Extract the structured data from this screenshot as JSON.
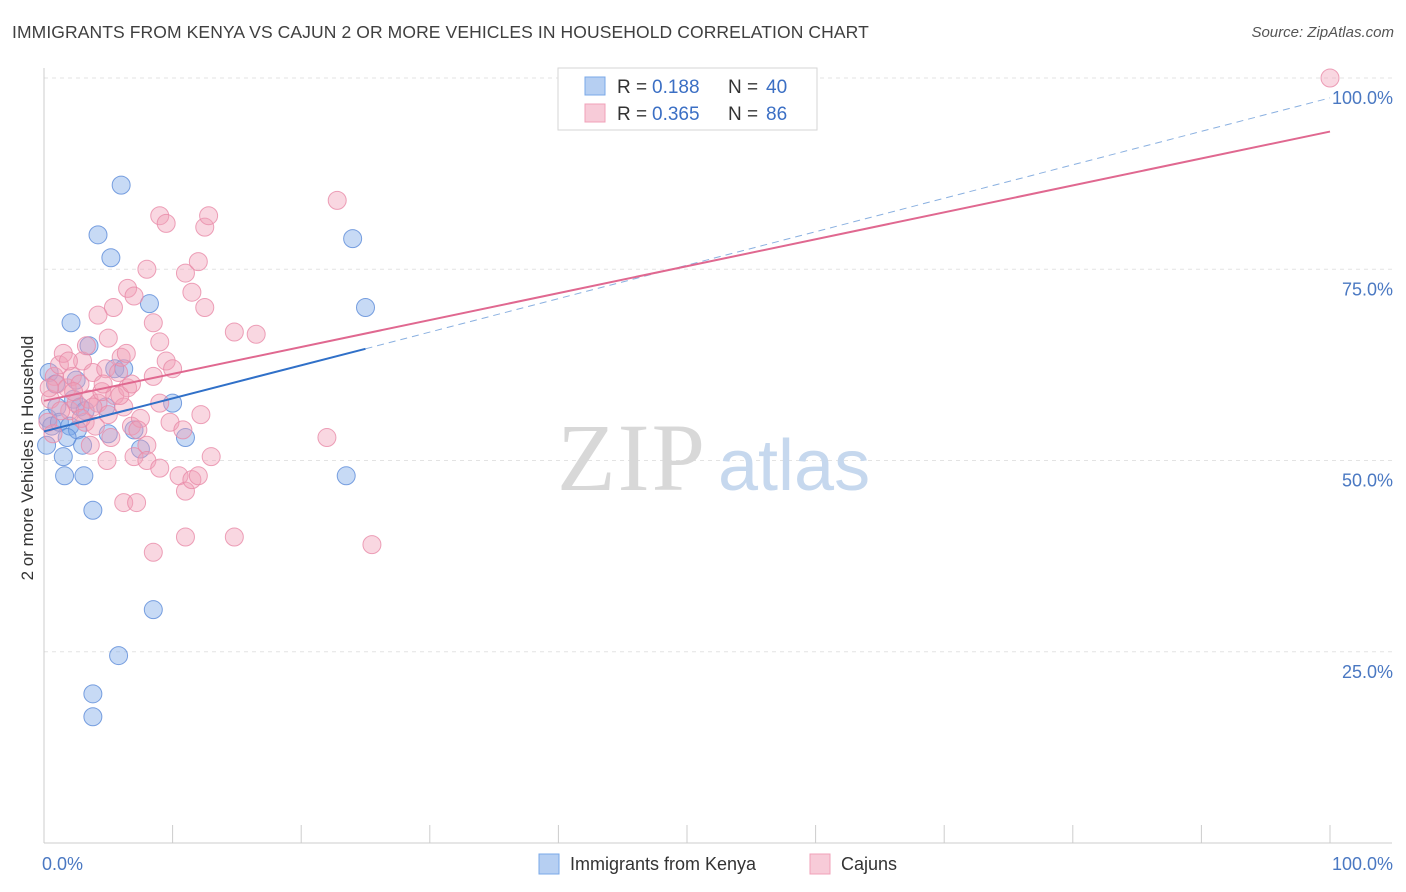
{
  "title": "IMMIGRANTS FROM KENYA VS CAJUN 2 OR MORE VEHICLES IN HOUSEHOLD CORRELATION CHART",
  "source": "Source: ZipAtlas.com",
  "watermark": {
    "zip": "ZIP",
    "atlas": "atlas"
  },
  "chart_data": {
    "type": "scatter",
    "title": "IMMIGRANTS FROM KENYA VS CAJUN 2 OR MORE VEHICLES IN HOUSEHOLD CORRELATION CHART",
    "xlabel": "",
    "ylabel": "2 or more Vehicles in Household",
    "xlim": [
      0,
      100
    ],
    "ylim": [
      0,
      100
    ],
    "x_tick_labels": [
      "0.0%",
      "100.0%"
    ],
    "y_ticks": [
      25,
      50,
      75,
      100
    ],
    "y_tick_labels": [
      "25.0%",
      "50.0%",
      "75.0%",
      "100.0%"
    ],
    "grid": true,
    "legend_top": {
      "rows": [
        {
          "series": "Immigrants from Kenya",
          "r_label": "R = ",
          "r": "0.188",
          "n_label": "N = ",
          "n": "40",
          "color": "#7aa8e8"
        },
        {
          "series": "Cajuns",
          "r_label": "R = ",
          "r": "0.365",
          "n_label": "N = ",
          "n": "86",
          "color": "#f0a0b8"
        }
      ]
    },
    "series": [
      {
        "name": "Immigrants from Kenya",
        "color": "#7aa8e8",
        "stroke": "#5a8ad8",
        "trend_color": "#3070c8",
        "trend": {
          "x0": 0,
          "y0": 53.8,
          "x1": 25,
          "y1": 64.6,
          "dash_x1": 100,
          "dash_y1": 97.4
        },
        "points": [
          [
            0.3,
            55.5
          ],
          [
            0.6,
            54.5
          ],
          [
            0.4,
            61.5
          ],
          [
            0.9,
            60.0
          ],
          [
            1.0,
            57.0
          ],
          [
            1.2,
            55.0
          ],
          [
            1.5,
            50.5
          ],
          [
            1.6,
            48.0
          ],
          [
            2.1,
            68.0
          ],
          [
            2.0,
            54.5
          ],
          [
            2.3,
            58.0
          ],
          [
            2.5,
            60.5
          ],
          [
            2.8,
            57.0
          ],
          [
            2.6,
            54.0
          ],
          [
            3.0,
            52.0
          ],
          [
            3.1,
            48.0
          ],
          [
            3.2,
            56.5
          ],
          [
            3.5,
            65.0
          ],
          [
            3.8,
            43.5
          ],
          [
            4.2,
            79.5
          ],
          [
            4.8,
            57.0
          ],
          [
            5.0,
            53.5
          ],
          [
            5.2,
            76.5
          ],
          [
            5.5,
            62.0
          ],
          [
            6.0,
            86.0
          ],
          [
            6.2,
            62.0
          ],
          [
            7.0,
            54.0
          ],
          [
            7.5,
            51.5
          ],
          [
            8.2,
            70.5
          ],
          [
            8.5,
            30.5
          ],
          [
            10.0,
            57.5
          ],
          [
            11.0,
            53.0
          ],
          [
            24.0,
            79.0
          ],
          [
            25.0,
            70.0
          ],
          [
            23.5,
            48.0
          ],
          [
            5.8,
            24.5
          ],
          [
            3.8,
            19.5
          ],
          [
            3.8,
            16.5
          ],
          [
            0.2,
            52.0
          ],
          [
            1.8,
            53.0
          ]
        ]
      },
      {
        "name": "Cajuns",
        "color": "#f0a0b8",
        "stroke": "#e88aa8",
        "trend_color": "#e06890",
        "trend": {
          "x0": 0,
          "y0": 57.8,
          "x1": 100,
          "y1": 93.0
        },
        "points": [
          [
            0.3,
            55.0
          ],
          [
            0.5,
            58.0
          ],
          [
            0.8,
            61.0
          ],
          [
            1.0,
            60.0
          ],
          [
            1.2,
            62.5
          ],
          [
            1.5,
            64.0
          ],
          [
            1.8,
            59.5
          ],
          [
            2.0,
            56.5
          ],
          [
            2.2,
            61.0
          ],
          [
            2.5,
            57.5
          ],
          [
            2.8,
            60.0
          ],
          [
            3.0,
            63.0
          ],
          [
            3.2,
            55.0
          ],
          [
            3.5,
            58.0
          ],
          [
            3.8,
            61.5
          ],
          [
            4.0,
            54.5
          ],
          [
            4.2,
            57.5
          ],
          [
            4.5,
            59.0
          ],
          [
            4.8,
            62.0
          ],
          [
            5.0,
            56.0
          ],
          [
            5.2,
            53.0
          ],
          [
            5.5,
            58.5
          ],
          [
            5.8,
            61.5
          ],
          [
            6.0,
            63.5
          ],
          [
            6.2,
            57.0
          ],
          [
            6.5,
            59.5
          ],
          [
            6.8,
            54.5
          ],
          [
            7.0,
            50.5
          ],
          [
            7.5,
            55.5
          ],
          [
            8.0,
            52.0
          ],
          [
            8.5,
            61.0
          ],
          [
            9.0,
            57.5
          ],
          [
            9.5,
            63.0
          ],
          [
            10.0,
            62.0
          ],
          [
            10.5,
            48.0
          ],
          [
            11.0,
            46.0
          ],
          [
            11.5,
            47.5
          ],
          [
            12.0,
            48.0
          ],
          [
            13.0,
            50.5
          ],
          [
            4.2,
            69.0
          ],
          [
            5.0,
            66.0
          ],
          [
            6.5,
            72.5
          ],
          [
            7.0,
            71.5
          ],
          [
            8.0,
            75.0
          ],
          [
            8.5,
            68.0
          ],
          [
            9.0,
            65.5
          ],
          [
            11.0,
            74.5
          ],
          [
            11.5,
            72.0
          ],
          [
            12.0,
            76.0
          ],
          [
            12.5,
            70.0
          ],
          [
            9.0,
            82.0
          ],
          [
            9.5,
            81.0
          ],
          [
            12.5,
            80.5
          ],
          [
            12.8,
            82.0
          ],
          [
            14.8,
            66.8
          ],
          [
            16.5,
            66.5
          ],
          [
            22.8,
            84.0
          ],
          [
            22.0,
            53.0
          ],
          [
            25.5,
            39.0
          ],
          [
            14.8,
            40.0
          ],
          [
            11.0,
            40.0
          ],
          [
            8.5,
            38.0
          ],
          [
            6.2,
            44.5
          ],
          [
            7.2,
            44.5
          ],
          [
            8.0,
            50.0
          ],
          [
            9.0,
            49.0
          ],
          [
            100.0,
            100.0
          ],
          [
            3.8,
            57.0
          ],
          [
            2.3,
            59.0
          ],
          [
            1.3,
            56.5
          ],
          [
            0.7,
            53.5
          ],
          [
            4.6,
            60.0
          ],
          [
            5.9,
            58.5
          ],
          [
            6.8,
            60.0
          ],
          [
            7.3,
            54.0
          ],
          [
            9.8,
            55.0
          ],
          [
            0.4,
            59.5
          ],
          [
            2.9,
            55.5
          ],
          [
            3.6,
            52.0
          ],
          [
            4.9,
            50.0
          ],
          [
            1.9,
            63.0
          ],
          [
            3.3,
            65.0
          ],
          [
            5.4,
            70.0
          ],
          [
            6.4,
            64.0
          ],
          [
            10.8,
            54.0
          ],
          [
            12.2,
            56.0
          ]
        ]
      }
    ]
  },
  "bottom_legend": {
    "items": [
      {
        "label": "Immigrants from Kenya",
        "color": "#7aa8e8"
      },
      {
        "label": "Cajuns",
        "color": "#f0a0b8"
      }
    ]
  }
}
